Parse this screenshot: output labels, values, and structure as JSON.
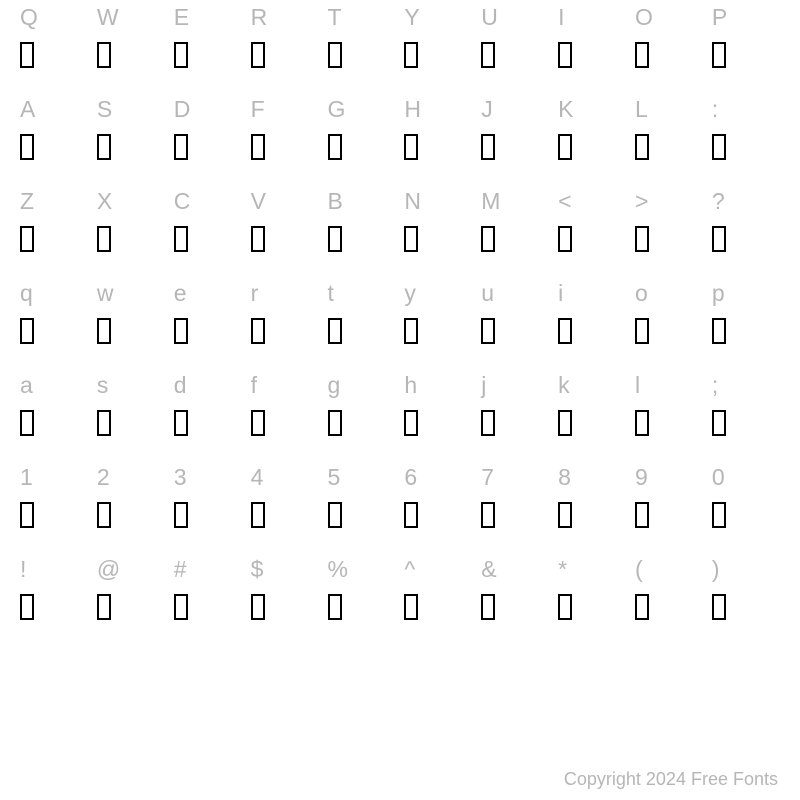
{
  "rows": [
    [
      "Q",
      "W",
      "E",
      "R",
      "T",
      "Y",
      "U",
      "I",
      "O",
      "P"
    ],
    [
      "A",
      "S",
      "D",
      "F",
      "G",
      "H",
      "J",
      "K",
      "L",
      ":"
    ],
    [
      "Z",
      "X",
      "C",
      "V",
      "B",
      "N",
      "M",
      "<",
      ">",
      "?"
    ],
    [
      "q",
      "w",
      "e",
      "r",
      "t",
      "y",
      "u",
      "i",
      "o",
      "p"
    ],
    [
      "a",
      "s",
      "d",
      "f",
      "g",
      "h",
      "j",
      "k",
      "l",
      ";"
    ],
    [
      "1",
      "2",
      "3",
      "4",
      "5",
      "6",
      "7",
      "8",
      "9",
      "0"
    ],
    [
      "!",
      "@",
      "#",
      "$",
      "%",
      "^",
      "&",
      "*",
      "(",
      ")"
    ]
  ],
  "copyright": "Copyright 2024 Free Fonts",
  "colors": {
    "label": "#b6b6b6",
    "box_border": "#000000",
    "background": "#ffffff"
  },
  "typography": {
    "label_fontsize": 23,
    "copyright_fontsize": 18
  },
  "glyph_box": {
    "width": 14,
    "height": 26,
    "border_width": 2
  }
}
